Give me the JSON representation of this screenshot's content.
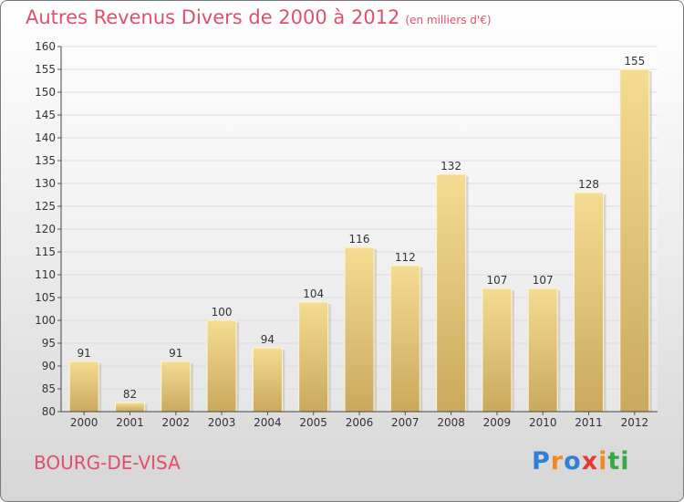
{
  "title": "Autres Revenus Divers de 2000 à 2012",
  "unit_note": "(en milliers d'€)",
  "commune": "BOURG-DE-VISA",
  "logo": {
    "text": "Proxiti",
    "letters": [
      "P",
      "r",
      "o",
      "x",
      "i",
      "t",
      "i"
    ],
    "colors": [
      "#2f7fd6",
      "#f08a24",
      "#2f7fd6",
      "#e63a2e",
      "#f08a24",
      "#3aa84a",
      "#3aa84a"
    ]
  },
  "colors": {
    "title": "#e0506a",
    "bar_top": "#f4dc92",
    "bar_bottom": "#c9a95e",
    "grid": "#dcdcdc"
  },
  "chart_data": {
    "type": "bar",
    "title": "Autres Revenus Divers de 2000 à 2012",
    "subtitle": "(en milliers d'€)",
    "categories": [
      "2000",
      "2001",
      "2002",
      "2003",
      "2004",
      "2005",
      "2006",
      "2007",
      "2008",
      "2009",
      "2010",
      "2011",
      "2012"
    ],
    "values": [
      91,
      82,
      91,
      100,
      94,
      104,
      116,
      112,
      132,
      107,
      107,
      128,
      155
    ],
    "ylim": [
      80,
      160
    ],
    "yticks": [
      80,
      85,
      90,
      95,
      100,
      105,
      110,
      115,
      120,
      125,
      130,
      135,
      140,
      145,
      150,
      155,
      160
    ],
    "grid": true,
    "legend": "none"
  }
}
